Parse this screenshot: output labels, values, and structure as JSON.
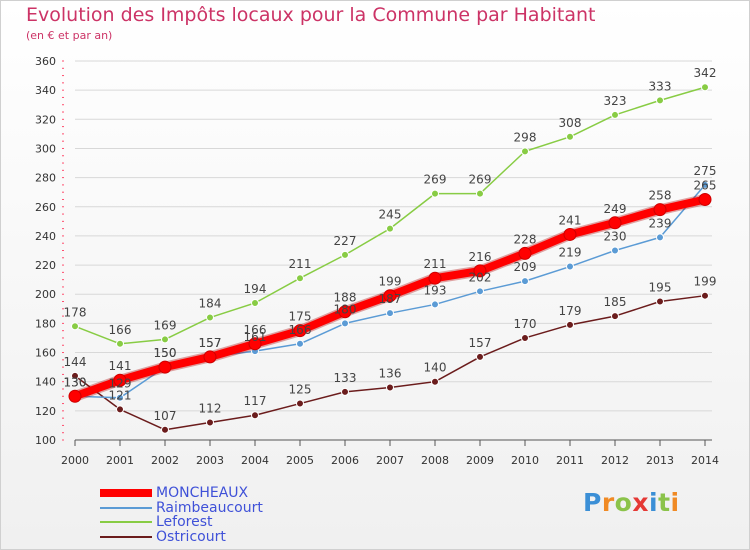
{
  "chart_data": {
    "type": "line",
    "title": "Evolution des Impôts locaux pour la Commune par Habitant",
    "subtitle": "(en € et par an)",
    "x": [
      2000,
      2001,
      2002,
      2003,
      2004,
      2005,
      2006,
      2007,
      2008,
      2009,
      2010,
      2011,
      2012,
      2013,
      2014
    ],
    "ylim": [
      100,
      360
    ],
    "yticks": [
      100,
      120,
      140,
      160,
      180,
      200,
      220,
      240,
      260,
      280,
      300,
      320,
      340,
      360
    ],
    "grid": "horizontal",
    "legend_position": "bottom-left",
    "series": [
      {
        "name": "MONCHEAUX",
        "color": "#ff0000",
        "values": [
          130,
          141,
          150,
          157,
          166,
          175,
          188,
          199,
          211,
          216,
          228,
          241,
          249,
          258,
          265
        ]
      },
      {
        "name": "Raimbeaucourt",
        "color": "#5b9bd5",
        "values": [
          130,
          129,
          150,
          157,
          161,
          166,
          180,
          187,
          193,
          202,
          209,
          219,
          230,
          239,
          275
        ]
      },
      {
        "name": "Leforest",
        "color": "#88cc44",
        "values": [
          178,
          166,
          169,
          184,
          194,
          211,
          227,
          245,
          269,
          269,
          298,
          308,
          323,
          333,
          342
        ]
      },
      {
        "name": "Ostricourt",
        "color": "#6b1c1c",
        "values": [
          144,
          121,
          107,
          112,
          117,
          125,
          133,
          136,
          140,
          157,
          170,
          179,
          185,
          195,
          199
        ]
      }
    ]
  },
  "brand": {
    "letters": [
      "P",
      "r",
      "o",
      "x",
      "i",
      "t",
      "i"
    ],
    "colors": [
      "#3b8fd6",
      "#f08a24",
      "#8bc34a",
      "#e53935",
      "#3b8fd6",
      "#8bc34a",
      "#f08a24"
    ]
  }
}
